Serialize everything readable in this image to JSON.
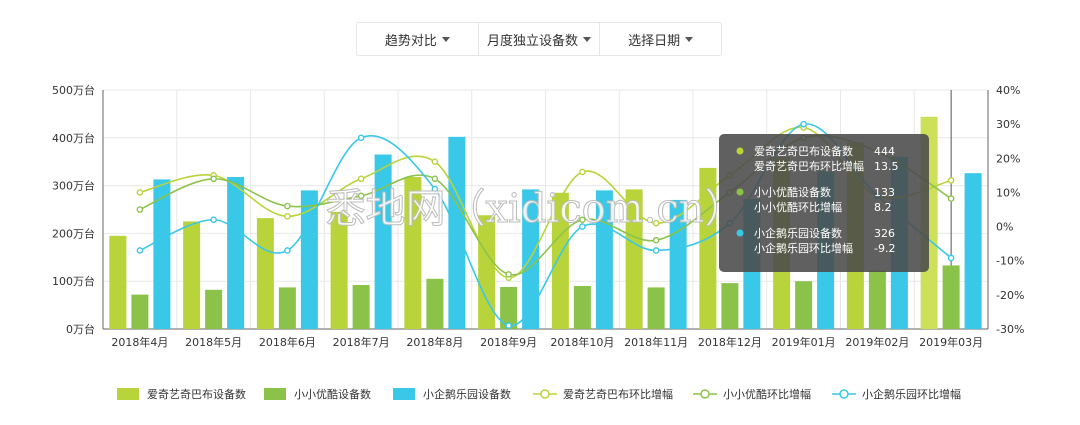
{
  "toolbar": {
    "items": [
      "趋势对比",
      "月度独立设备数",
      "选择日期"
    ]
  },
  "colors": {
    "series_a": "#b9d43a",
    "series_b": "#8bc34a",
    "series_c": "#39c8e8",
    "grid": "#e8e8e8",
    "axis": "#999999",
    "tooltip_bg": "#4a4a4a"
  },
  "watermark": "悉地网（xidicom.cn）",
  "chart_data": {
    "type": "bar",
    "categories": [
      "2018年4月",
      "2018年5月",
      "2018年6月",
      "2018年7月",
      "2018年8月",
      "2018年9月",
      "2018年10月",
      "2018年11月",
      "2018年12月",
      "2019年01月",
      "2019年02月",
      "2019年03月"
    ],
    "y_left": {
      "ticks": [
        "0万台",
        "100万台",
        "200万台",
        "300万台",
        "400万台",
        "500万台"
      ],
      "ylim": [
        0,
        500
      ]
    },
    "y_right": {
      "ticks": [
        "-30%",
        "-20%",
        "-10%",
        "0%",
        "10%",
        "20%",
        "30%",
        "40%"
      ],
      "ylim": [
        -30,
        40
      ]
    },
    "bar_series": [
      {
        "name": "爱奇艺奇巴布设备数",
        "color": "#b9d43a",
        "values": [
          195,
          225,
          232,
          245,
          318,
          238,
          285,
          292,
          337,
          360,
          390,
          444
        ]
      },
      {
        "name": "小小优酷设备数",
        "color": "#8bc34a",
        "values": [
          72,
          82,
          87,
          92,
          105,
          88,
          90,
          87,
          96,
          100,
          122,
          133
        ]
      },
      {
        "name": "小企鹅乐园设备数",
        "color": "#39c8e8",
        "values": [
          313,
          318,
          290,
          365,
          402,
          292,
          290,
          270,
          272,
          330,
          360,
          326
        ]
      }
    ],
    "line_series": [
      {
        "name": "爱奇艺奇巴布环比增幅",
        "color": "#b9d43a",
        "values": [
          10,
          15,
          3,
          14,
          19,
          -15,
          16,
          1,
          15,
          29,
          9,
          13.5
        ]
      },
      {
        "name": "小小优酷环比增幅",
        "color": "#8bc34a",
        "values": [
          5,
          14,
          6,
          9,
          14,
          -14,
          2,
          -4,
          10,
          26,
          22,
          8.2
        ]
      },
      {
        "name": "小企鹅乐园环比增幅",
        "color": "#39c8e8",
        "values": [
          -7,
          2,
          -7,
          26,
          11,
          -29,
          0,
          -7,
          1,
          30,
          9,
          -9.2
        ]
      }
    ],
    "legend_position": "bottom",
    "grid": true
  },
  "tooltip": {
    "rows": [
      {
        "label": "爱奇艺奇巴布设备数",
        "value": "444",
        "dot": "#b9d43a"
      },
      {
        "label": "爱奇艺奇巴布环比增幅",
        "value": "13.5",
        "dot": ""
      },
      {
        "label": "小小优酷设备数",
        "value": "133",
        "dot": "#8bc34a"
      },
      {
        "label": "小小优酷环比增幅",
        "value": "8.2",
        "dot": ""
      },
      {
        "label": "小企鹅乐园设备数",
        "value": "326",
        "dot": "#39c8e8"
      },
      {
        "label": "小企鹅乐园环比增幅",
        "value": "-9.2",
        "dot": ""
      }
    ]
  }
}
